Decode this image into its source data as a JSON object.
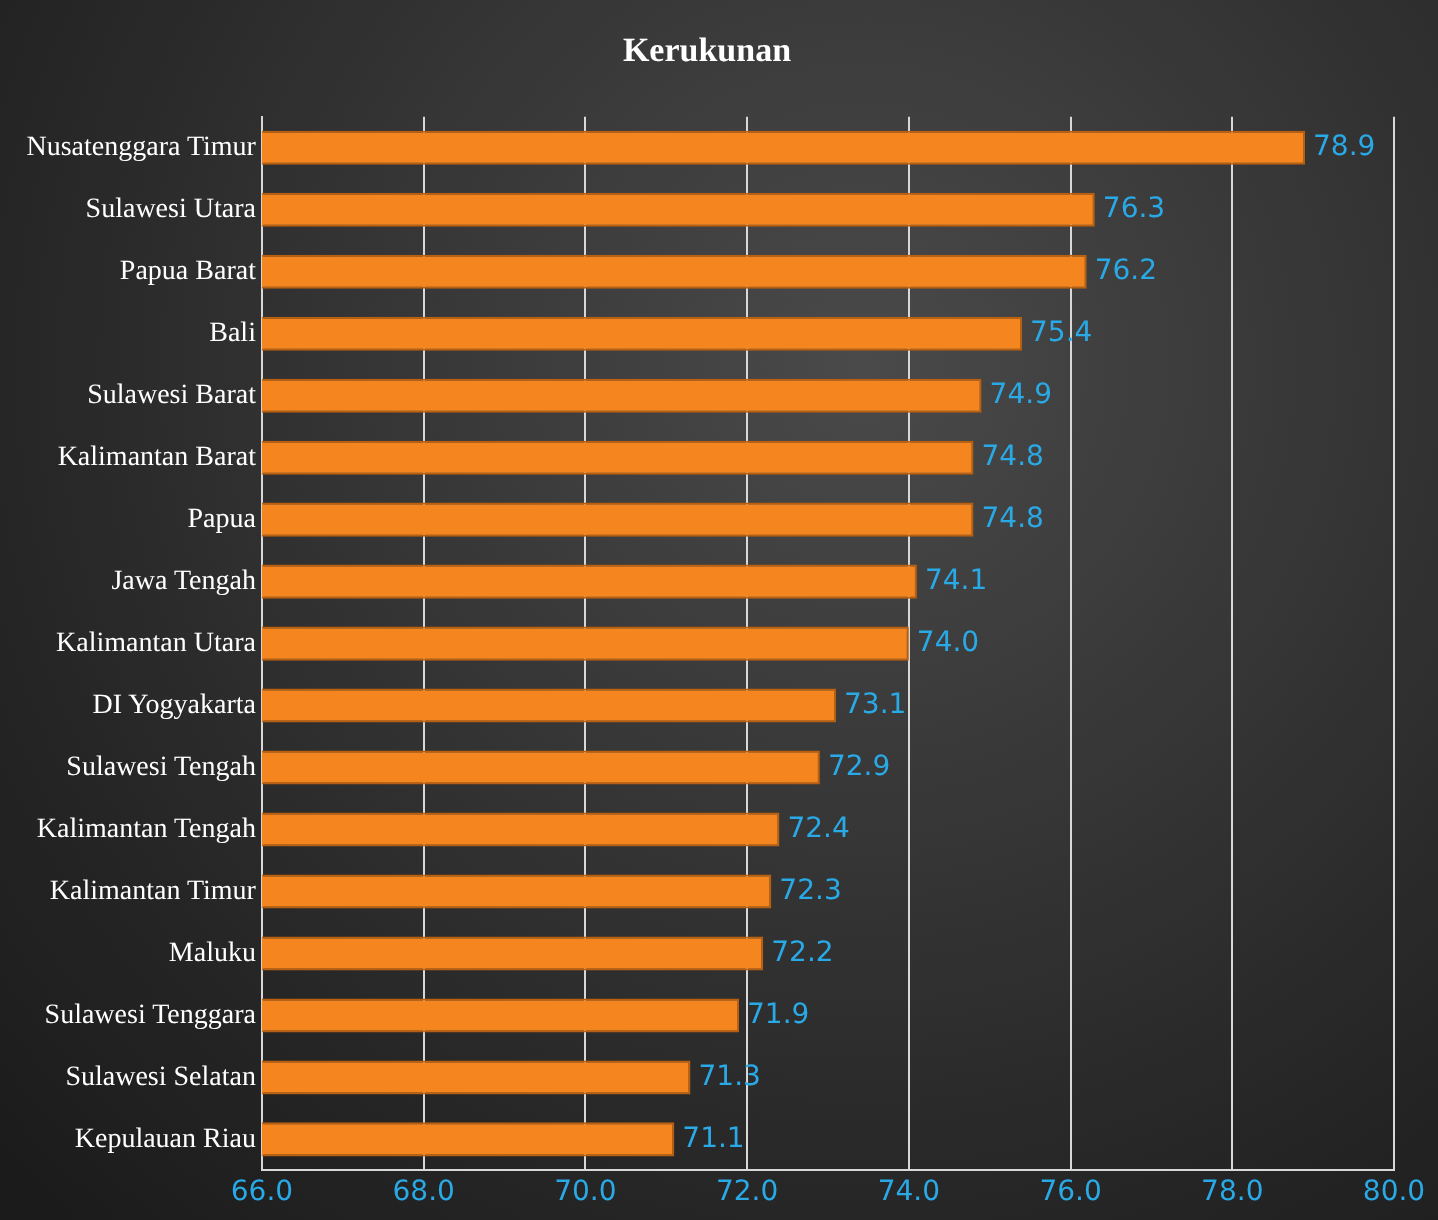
{
  "chart_data": {
    "type": "bar",
    "orientation": "horizontal",
    "title": "Kerukunan",
    "categories": [
      "Nusatenggara Timur",
      "Sulawesi Utara",
      "Papua Barat",
      "Bali",
      "Sulawesi Barat",
      "Kalimantan Barat",
      "Papua",
      "Jawa Tengah",
      "Kalimantan Utara",
      "DI Yogyakarta",
      "Sulawesi Tengah",
      "Kalimantan Tengah",
      "Kalimantan Timur",
      "Maluku",
      "Sulawesi Tenggara",
      "Sulawesi Selatan",
      "Kepulauan Riau"
    ],
    "values": [
      78.9,
      76.3,
      76.2,
      75.4,
      74.9,
      74.8,
      74.8,
      74.1,
      74.0,
      73.1,
      72.9,
      72.4,
      72.3,
      72.2,
      71.9,
      71.3,
      71.1
    ],
    "value_labels": [
      "78.9",
      "76.3",
      "76.2",
      "75.4",
      "74.9",
      "74.8",
      "74.8",
      "74.1",
      "74.0",
      "73.1",
      "72.9",
      "72.4",
      "72.3",
      "72.2",
      "71.9",
      "71.3",
      "71.1"
    ],
    "color": "#f5861f",
    "xlim": [
      66,
      80
    ],
    "xticks": [
      {
        "value": 66,
        "label": "66.0"
      },
      {
        "value": 68,
        "label": "68.0"
      },
      {
        "value": 70,
        "label": "70.0"
      },
      {
        "value": 72,
        "label": "72.0"
      },
      {
        "value": 74,
        "label": "74.0"
      },
      {
        "value": 76,
        "label": "76.0"
      },
      {
        "value": 78,
        "label": "78.0"
      },
      {
        "value": 80,
        "label": "80.0"
      }
    ],
    "grid": "x"
  }
}
